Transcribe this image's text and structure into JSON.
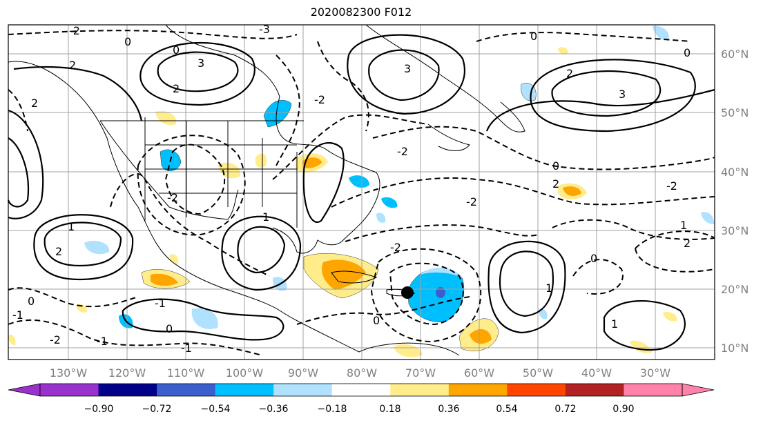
{
  "title": "2020082300 F012",
  "map": {
    "lon_ticks": [
      "130°W",
      "120°W",
      "110°W",
      "100°W",
      "90°W",
      "80°W",
      "70°W",
      "60°W",
      "50°W",
      "40°W",
      "30°W"
    ],
    "lat_ticks": [
      "60°N",
      "50°N",
      "40°N",
      "30°N",
      "20°N",
      "10°N"
    ]
  },
  "contour_labels": [
    "3",
    "0",
    "-3",
    "2",
    "-2",
    "1",
    "-1"
  ],
  "colorbar": {
    "colors": [
      "#9932cc",
      "#00008b",
      "#3a5fcd",
      "#00bfff",
      "#b0e2ff",
      "#ffffff",
      "#ffec8b",
      "#ffa500",
      "#ff4500",
      "#b22222",
      "#ff82ab"
    ],
    "ticks": [
      "−0.90",
      "−0.72",
      "−0.54",
      "−0.36",
      "−0.18",
      "0.18",
      "0.36",
      "0.54",
      "0.72",
      "0.90"
    ],
    "under_color": "#9932cc",
    "over_color": "#ff82ab"
  }
}
